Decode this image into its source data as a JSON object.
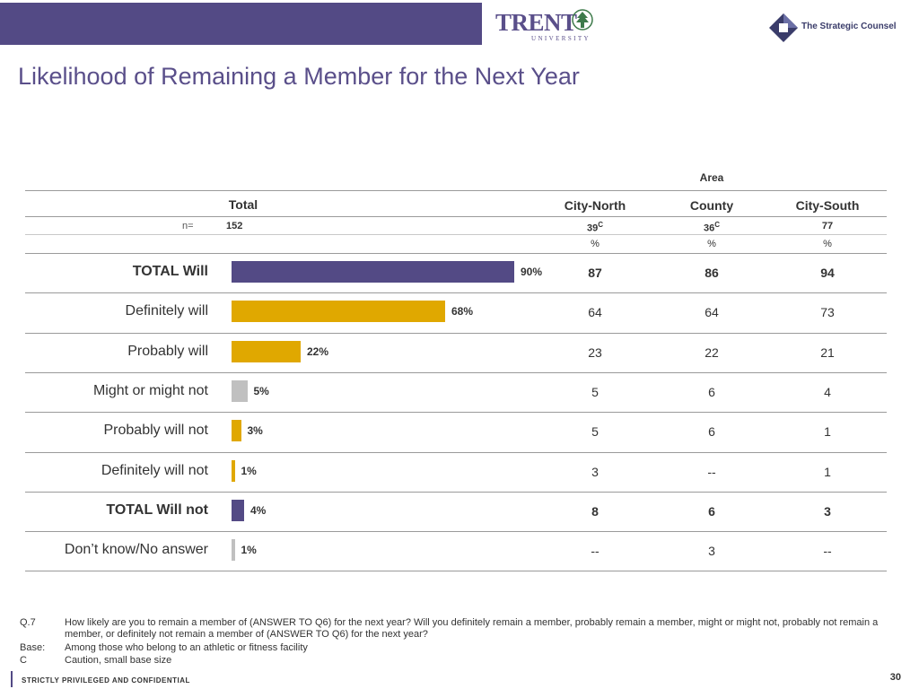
{
  "header": {
    "trent_logo": "TRENT",
    "trent_sub": "UNIVERSITY",
    "strategic_counsel": "The Strategic Counsel"
  },
  "page_title": "Likelihood of Remaining a Member for the Next Year",
  "colors": {
    "purple": "#534a85",
    "gold": "#e0a800",
    "gray": "#c0c0c0"
  },
  "table": {
    "area_label": "Area",
    "total_label": "Total",
    "n_label": "n=",
    "total_n": "152",
    "columns": [
      {
        "name": "City-North",
        "n": "39",
        "sup": "C",
        "pct": "%"
      },
      {
        "name": "County",
        "n": "36",
        "sup": "C",
        "pct": "%"
      },
      {
        "name": "City-South",
        "n": "77",
        "sup": "",
        "pct": "%"
      }
    ]
  },
  "chart_data": {
    "type": "bar",
    "orientation": "horizontal",
    "xlim": [
      0,
      100
    ],
    "categories": [
      "TOTAL Will",
      "Definitely will",
      "Probably will",
      "Might or might not",
      "Probably will not",
      "Definitely will not",
      "TOTAL Will not",
      "Don’t know/No answer"
    ],
    "values": [
      90,
      68,
      22,
      5,
      3,
      1,
      4,
      1
    ],
    "value_labels": [
      "90%",
      "68%",
      "22%",
      "5%",
      "3%",
      "1%",
      "4%",
      "1%"
    ],
    "bar_colors": [
      "purple",
      "gold",
      "gold",
      "gray",
      "gold",
      "gold",
      "purple",
      "gray"
    ],
    "bold_rows": [
      true,
      false,
      false,
      false,
      false,
      false,
      true,
      false
    ]
  },
  "rows": [
    {
      "cells": [
        "87",
        "86",
        "94"
      ]
    },
    {
      "cells": [
        "64",
        "64",
        "73"
      ]
    },
    {
      "cells": [
        "23",
        "22",
        "21"
      ]
    },
    {
      "cells": [
        "5",
        "6",
        "4"
      ]
    },
    {
      "cells": [
        "5",
        "6",
        "1"
      ]
    },
    {
      "cells": [
        "3",
        "--",
        "1"
      ]
    },
    {
      "cells": [
        "8",
        "6",
        "3"
      ]
    },
    {
      "cells": [
        "--",
        "3",
        "--"
      ]
    }
  ],
  "footnotes": [
    {
      "key": "Q.7",
      "text": "How likely are you to remain a member of (ANSWER TO Q6) for the next year? Will you definitely remain a member, probably remain a member, might or might not, probably not remain a member, or definitely not remain a member of (ANSWER TO Q6) for the next year?"
    },
    {
      "key": "Base:",
      "text": "Among those who belong to an athletic or fitness facility"
    },
    {
      "key": "C",
      "text": "Caution, small base size"
    }
  ],
  "footer": {
    "confidential": "STRICTLY PRIVILEGED AND CONFIDENTIAL",
    "page_number": "30"
  }
}
